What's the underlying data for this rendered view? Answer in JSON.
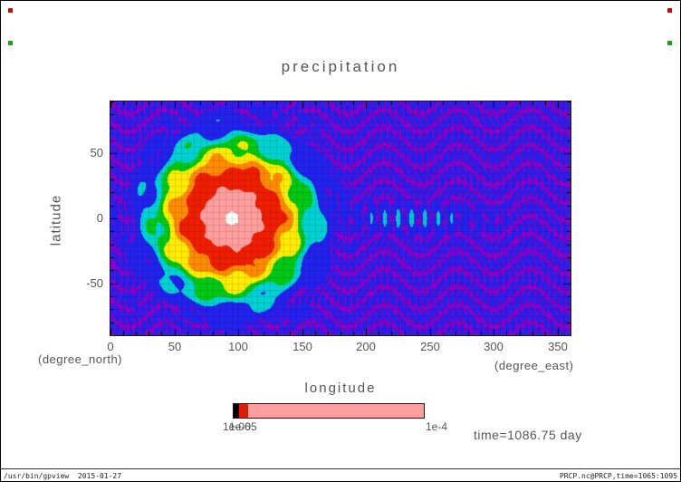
{
  "window": {
    "footer_left": "/usr/bin/gpview  2015-01-27",
    "footer_right": "PRCP.nc@PRCP,time=1065:1095"
  },
  "plot": {
    "title": "precipitation",
    "time_annotation": "time=1086.75 day",
    "x_axis_title": "longitude",
    "y_axis_title": "latitude",
    "x_axis_unit": "(degree_east)",
    "y_axis_unit": "(degree_north)",
    "colorbar_overlap_labels": [
      "1e-06",
      "1e-05"
    ],
    "colorbar_max_label": "1e-4"
  },
  "chart_data": {
    "type": "heatmap",
    "title": "precipitation",
    "xlabel": "longitude",
    "ylabel": "latitude",
    "x_unit": "degree_east",
    "y_unit": "degree_north",
    "xlim": [
      0,
      360
    ],
    "ylim": [
      -90,
      90
    ],
    "x_ticks": [
      0,
      50,
      100,
      150,
      200,
      250,
      300,
      350
    ],
    "y_ticks": [
      50,
      0,
      -50
    ],
    "grid": true,
    "annotation": "time=1086.75 day",
    "value_scale_min_label": "1e-05",
    "value_scale_max_label": "1e-4",
    "peak": {
      "lon": 95,
      "lat": 0,
      "value": "1e-4"
    },
    "levels": [
      0.05,
      0.13,
      0.22,
      0.32,
      0.45,
      0.58,
      0.84,
      0.995
    ],
    "colors": [
      "#8a00c8",
      "#2222ee",
      "#00d2d2",
      "#00c814",
      "#ffec00",
      "#ff8c00",
      "#f01e00",
      "#ff9e9e",
      "#ffffff"
    ],
    "colorbar_segments": [
      {
        "color": "#000000",
        "frac": 0.03
      },
      {
        "color": "#dc1e00",
        "frac": 0.045
      },
      {
        "color": "#ff9e9e",
        "frac": 0.925
      }
    ],
    "field_model": {
      "center_lon": 95,
      "center_lat": 0,
      "core_radius": 50,
      "falloff": 2.3,
      "x_squash": 1.0,
      "wobble": [
        [
          6,
          0.07,
          0.25
        ],
        [
          11,
          0.05,
          -0.18
        ]
      ],
      "ring": {
        "amp": 0.09,
        "freq": 0.35,
        "radius": 75,
        "width": 25
      },
      "wave_train": {
        "amp": 0.17,
        "lat_width": 14,
        "lon_center": 235,
        "lon_width": 75,
        "wavenumber": 0.3,
        "start_lon": 150
      },
      "ripples": {
        "base": 0.045,
        "amp": 0.05,
        "f1": 0.62,
        "f2": 0.17,
        "f3": 0.23,
        "f4": 0.11
      }
    }
  }
}
